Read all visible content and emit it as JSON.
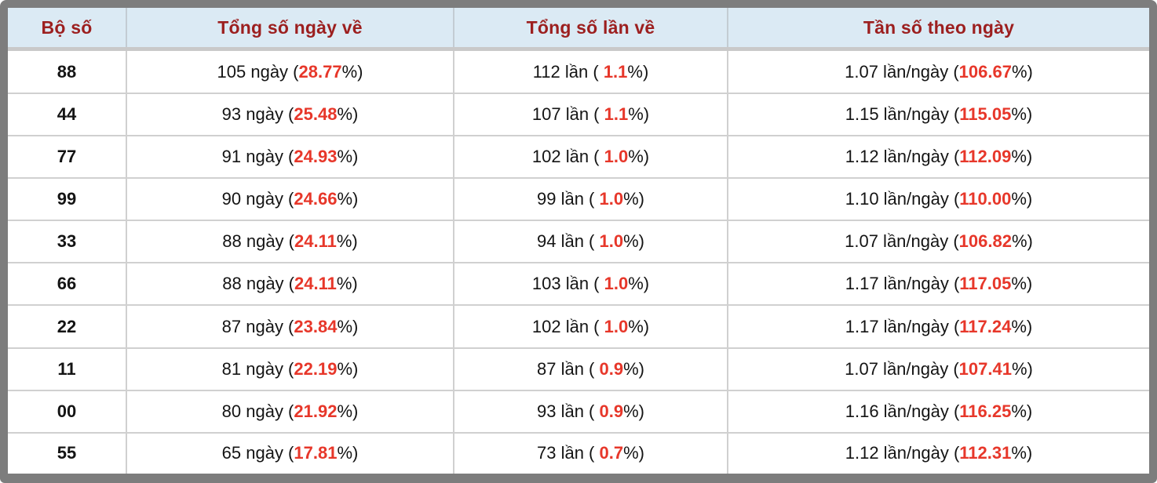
{
  "colors": {
    "outer_border": "#7d7d7d",
    "header_bg": "#dbeaf4",
    "header_text": "#9c1f1f",
    "cell_text": "#141414",
    "highlight_red": "#e7372a",
    "grid_line": "#d0d0d0"
  },
  "table": {
    "columns": [
      "Bộ số",
      "Tổng số ngày về",
      "Tổng số lần về",
      "Tần số theo ngày"
    ],
    "rows": [
      {
        "set": "88",
        "cells": [
          [
            "105 ngày (",
            "28.77",
            "%)"
          ],
          [
            "112 lần ( ",
            "1.1",
            "%)"
          ],
          [
            "1.07 lần/ngày (",
            "106.67",
            "%)"
          ]
        ]
      },
      {
        "set": "44",
        "cells": [
          [
            "93 ngày (",
            "25.48",
            "%)"
          ],
          [
            "107 lần ( ",
            "1.1",
            "%)"
          ],
          [
            "1.15 lần/ngày (",
            "115.05",
            "%)"
          ]
        ]
      },
      {
        "set": "77",
        "cells": [
          [
            "91 ngày (",
            "24.93",
            "%)"
          ],
          [
            "102 lần ( ",
            "1.0",
            "%)"
          ],
          [
            "1.12 lần/ngày (",
            "112.09",
            "%)"
          ]
        ]
      },
      {
        "set": "99",
        "cells": [
          [
            "90 ngày (",
            "24.66",
            "%)"
          ],
          [
            "99 lần ( ",
            "1.0",
            "%)"
          ],
          [
            "1.10 lần/ngày (",
            "110.00",
            "%)"
          ]
        ]
      },
      {
        "set": "33",
        "cells": [
          [
            "88 ngày (",
            "24.11",
            "%)"
          ],
          [
            "94 lần ( ",
            "1.0",
            "%)"
          ],
          [
            "1.07 lần/ngày (",
            "106.82",
            "%)"
          ]
        ]
      },
      {
        "set": "66",
        "cells": [
          [
            "88 ngày (",
            "24.11",
            "%)"
          ],
          [
            "103 lần ( ",
            "1.0",
            "%)"
          ],
          [
            "1.17 lần/ngày (",
            "117.05",
            "%)"
          ]
        ]
      },
      {
        "set": "22",
        "cells": [
          [
            "87 ngày (",
            "23.84",
            "%)"
          ],
          [
            "102 lần ( ",
            "1.0",
            "%)"
          ],
          [
            "1.17 lần/ngày (",
            "117.24",
            "%)"
          ]
        ]
      },
      {
        "set": "11",
        "cells": [
          [
            "81 ngày (",
            "22.19",
            "%)"
          ],
          [
            "87 lần ( ",
            "0.9",
            "%)"
          ],
          [
            "1.07 lần/ngày (",
            "107.41",
            "%)"
          ]
        ]
      },
      {
        "set": "00",
        "cells": [
          [
            "80 ngày (",
            "21.92",
            "%)"
          ],
          [
            "93 lần ( ",
            "0.9",
            "%)"
          ],
          [
            "1.16 lần/ngày (",
            "116.25",
            "%)"
          ]
        ]
      },
      {
        "set": "55",
        "cells": [
          [
            "65 ngày (",
            "17.81",
            "%)"
          ],
          [
            "73 lần ( ",
            "0.7",
            "%)"
          ],
          [
            "1.12 lần/ngày (",
            "112.31",
            "%)"
          ]
        ]
      }
    ]
  }
}
